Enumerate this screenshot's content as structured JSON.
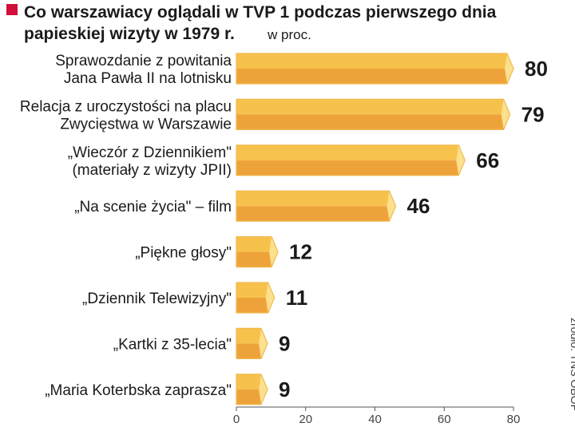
{
  "title_lines": [
    "Co warszawiacy oglądali w TVP 1 podczas pierwszego dnia",
    "papieskiej wizyty w 1979 r."
  ],
  "unit_label": "w proc.",
  "source": "źródło: TNS OBOP",
  "colors": {
    "title_marker": "#d0103a",
    "bar_top": "#f7c24b",
    "bar_bottom": "#eea33a",
    "bar_cap": "#fbe08e",
    "bar_stroke": "#f2b94f"
  },
  "chart_data": {
    "type": "bar",
    "orientation": "horizontal",
    "categories": [
      [
        "Sprawozdanie z powitania",
        "Jana Pawła II na lotnisku"
      ],
      [
        "Relacja z uroczystości na placu",
        "Zwycięstwa w Warszawie"
      ],
      [
        "„Wieczór z Dziennikiem\"",
        "(materiały z wizyty JPII)"
      ],
      [
        "„Na scenie życia\" – film"
      ],
      [
        "„Piękne głosy\""
      ],
      [
        "„Dziennik Telewizyjny\""
      ],
      [
        "„Kartki z 35-lecia\""
      ],
      [
        "„Maria Koterbska zaprasza\""
      ]
    ],
    "values": [
      80,
      79,
      66,
      46,
      12,
      11,
      9,
      9
    ],
    "value_labels": [
      "80",
      "79",
      "66",
      "46",
      "12",
      "11",
      "9",
      "9"
    ],
    "xlim": [
      0,
      80
    ],
    "xticks": [
      "0",
      "20",
      "40",
      "60",
      "80"
    ],
    "grid": false,
    "legend": "none"
  }
}
